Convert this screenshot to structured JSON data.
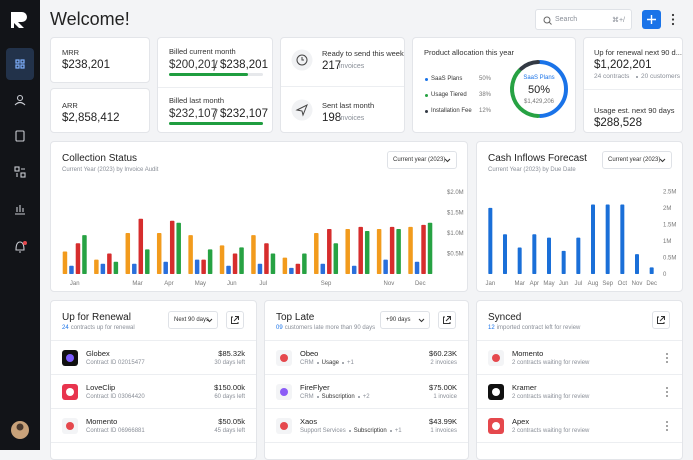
{
  "header": {
    "title": "Welcome!",
    "search": "Search",
    "shortcut": "⌘+/"
  },
  "kpis": {
    "mrr": {
      "label": "MRR",
      "value": "$238,201"
    },
    "arr": {
      "label": "ARR",
      "value": "$2,858,412"
    },
    "billed_current": {
      "label": "Billed current month",
      "amount": "$200,201",
      "total": "$238,201"
    },
    "billed_last": {
      "label": "Billed last month",
      "amount": "$232,107",
      "total": "$232,107"
    },
    "ready": {
      "label": "Ready to send this week",
      "count": "217",
      "unit": "invoices"
    },
    "sent": {
      "label": "Sent last month",
      "count": "198",
      "unit": "invoices"
    },
    "renewal": {
      "label": "Up for renewal next 90 d...",
      "value": "$1,202,201",
      "contracts": "24 contracts",
      "customers": "20 customers"
    },
    "usage": {
      "label": "Usage est. next 90 days",
      "value": "$288,528"
    }
  },
  "chart_data": [
    {
      "type": "bar",
      "title": "Collection Status",
      "subtitle": "Current Year (2023) by Invoice Audit",
      "filter": "Current year (2023)",
      "categories": [
        "Jan",
        null,
        "Mar",
        "Apr",
        "May",
        "Jun",
        "Jul",
        null,
        "Sep",
        null,
        "Nov",
        "Dec"
      ],
      "series": [
        {
          "color": "#f29b1d",
          "values": [
            0.55,
            0.35,
            1.0,
            1.0,
            0.95,
            0.7,
            0.95,
            0.4,
            1.0,
            1.1,
            1.1,
            1.15
          ]
        },
        {
          "color": "#2a6fdb",
          "values": [
            0.2,
            0.25,
            0.25,
            0.3,
            0.35,
            0.2,
            0.25,
            0.15,
            0.25,
            0.2,
            0.35,
            0.3
          ]
        },
        {
          "color": "#d62d2d",
          "values": [
            0.75,
            0.5,
            1.35,
            1.3,
            0.35,
            0.5,
            0.75,
            0.25,
            1.1,
            1.15,
            1.15,
            1.2
          ]
        },
        {
          "color": "#27a243",
          "values": [
            0.95,
            0.3,
            0.6,
            1.25,
            0.6,
            0.65,
            0.5,
            0.5,
            0.75,
            1.05,
            1.1,
            1.25
          ]
        }
      ],
      "ylim": [
        0,
        2.1
      ],
      "yticks": [
        {
          "value": 0.5,
          "label": "$0.5M"
        },
        {
          "value": 1,
          "label": "$1.0M"
        },
        {
          "value": 1.5,
          "label": "$1.5M"
        },
        {
          "value": 2,
          "label": "$2.0M"
        }
      ]
    },
    {
      "type": "bar",
      "title": "Cash Inflows Forecast",
      "subtitle": "Current Year (2023) by Due Date",
      "filter": "Current year (2023)",
      "categories": [
        "Jan",
        null,
        "Mar",
        "Apr",
        "May",
        "Jun",
        "Jul",
        "Aug",
        "Sep",
        "Oct",
        "Nov",
        "Dec"
      ],
      "series": [
        {
          "color": "#1a6fd8",
          "values": [
            2.0,
            1.2,
            0.8,
            1.2,
            1.1,
            0.7,
            1.1,
            2.1,
            2.1,
            2.1,
            0.6,
            0.2
          ]
        }
      ],
      "ylim": [
        0,
        2.6
      ],
      "yticks": [
        0,
        {
          "value": 0.5,
          "label": "0.5M"
        },
        {
          "value": 1,
          "label": "1M"
        },
        {
          "value": 1.5,
          "label": "1.5M"
        },
        {
          "value": 2,
          "label": "2M"
        },
        {
          "value": 2.5,
          "label": "2.5M"
        }
      ]
    },
    {
      "type": "pie",
      "title": "Product allocation this year",
      "categories": [
        "SaaS Plans",
        "Usage Tiered",
        "Installation Fee"
      ],
      "values": [
        50,
        38,
        12
      ],
      "value_labels": [
        "50%",
        "38%",
        "12%"
      ],
      "colors": [
        "#1a73e8",
        "#27a243",
        "#333a44"
      ],
      "center_value": "$1,429,206"
    }
  ],
  "lists": [
    {
      "title": "Up for Renewal",
      "count": "24",
      "subtitle": "contracts up for renewal",
      "filter": "Next 90 days",
      "rows": [
        {
          "name": "Globex",
          "detail": "Contract ID 02015477",
          "amount": "$85.32k",
          "note": "30 days left"
        },
        {
          "name": "LoveClip",
          "detail": "Contract ID 03064420",
          "amount": "$150.00k",
          "note": "60 days left"
        },
        {
          "name": "Momento",
          "detail": "Contract ID 06966881",
          "amount": "$50.05k",
          "note": "45 days left"
        }
      ]
    },
    {
      "title": "Top Late",
      "count": "09",
      "subtitle": "customers late more than 90 days",
      "filter": "+90 days",
      "rows": [
        {
          "name": "Obeo",
          "tags": [
            "CRM",
            "Usage",
            "+1"
          ],
          "amount": "$60.23K",
          "note": "2 invoices"
        },
        {
          "name": "FireFlyer",
          "tags": [
            "CRM",
            "Subscription",
            "+2"
          ],
          "amount": "$75.00K",
          "note": "1 invoice"
        },
        {
          "name": "Xaos",
          "tags": [
            "Support Services",
            "Subscription",
            "+1"
          ],
          "amount": "$43.99K",
          "note": "1 invoices"
        }
      ]
    },
    {
      "title": "Synced",
      "count": "12",
      "subtitle": "imported contract left for review",
      "rows": [
        {
          "name": "Momento",
          "detail": "2 contracts waiting for review"
        },
        {
          "name": "Kramer",
          "detail": "2 contracts waiting for review"
        },
        {
          "name": "Apex",
          "detail": "2 contracts waiting for review"
        }
      ]
    }
  ]
}
